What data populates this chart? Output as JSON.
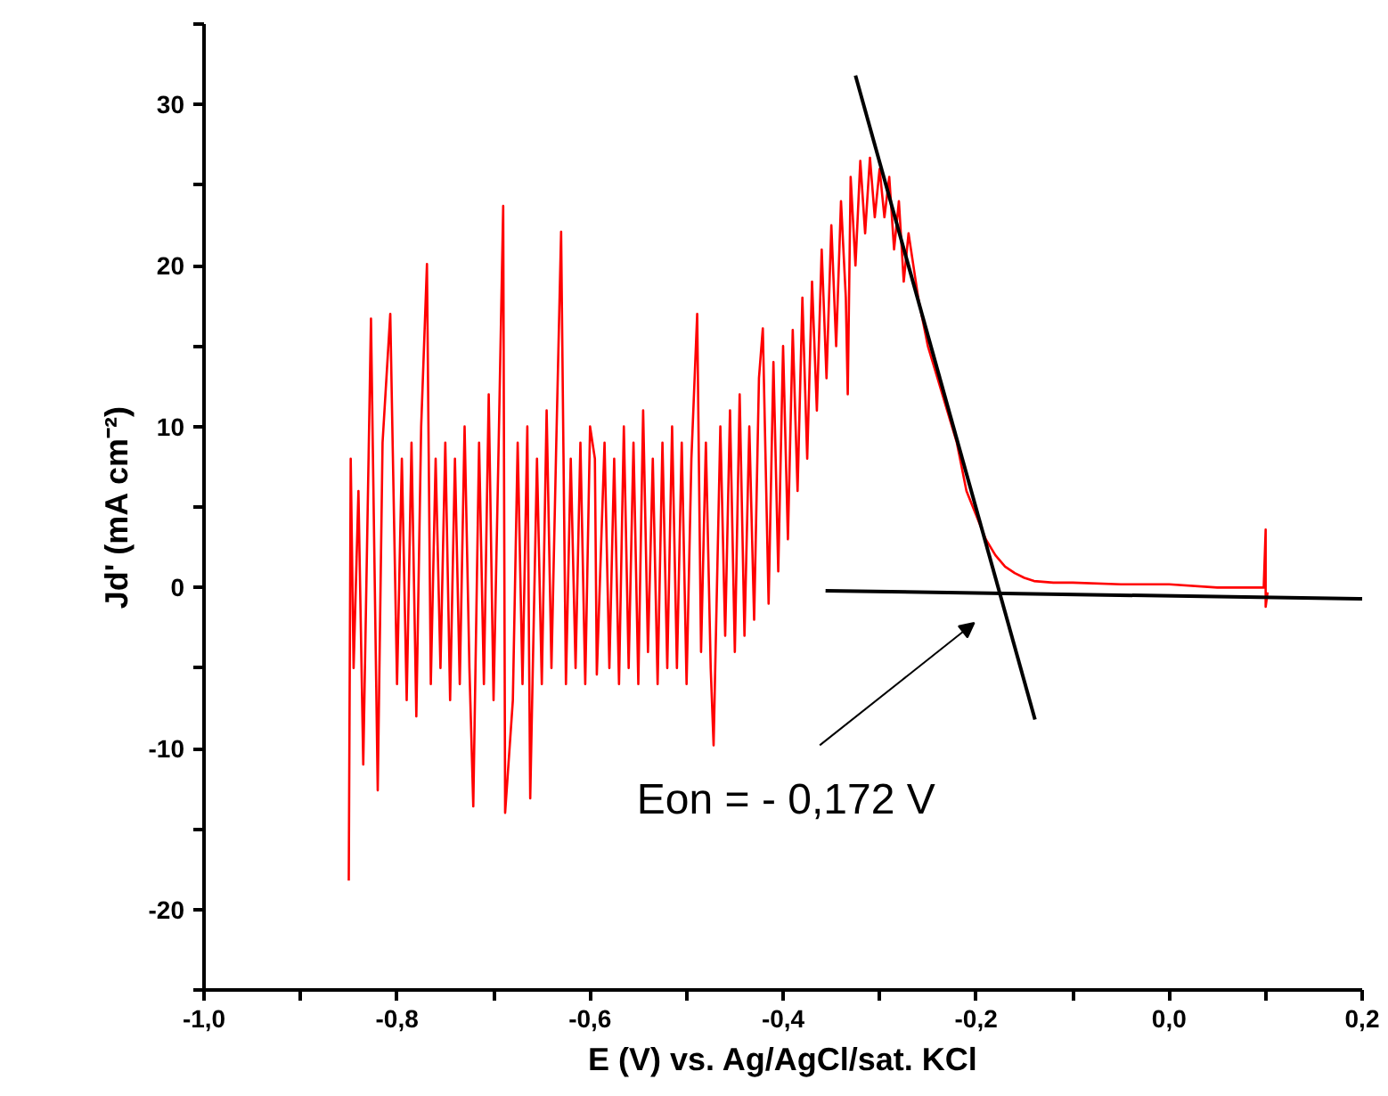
{
  "chart_data": {
    "type": "line",
    "xlabel": "E (V) vs. Ag/AgCl/sat. KCl",
    "ylabel": "Jd' (mA cm⁻²)",
    "xlim": [
      -1.0,
      0.2
    ],
    "ylim": [
      -25,
      35
    ],
    "xticks": [
      {
        "value": -1.0,
        "label": "-1,0"
      },
      {
        "value": -0.9,
        "label": null
      },
      {
        "value": -0.8,
        "label": "-0,8"
      },
      {
        "value": -0.7,
        "label": null
      },
      {
        "value": -0.6,
        "label": "-0,6"
      },
      {
        "value": -0.5,
        "label": null
      },
      {
        "value": -0.4,
        "label": "-0,4"
      },
      {
        "value": -0.3,
        "label": null
      },
      {
        "value": -0.2,
        "label": "-0,2"
      },
      {
        "value": -0.1,
        "label": null
      },
      {
        "value": 0.0,
        "label": "0,0"
      },
      {
        "value": 0.1,
        "label": null
      },
      {
        "value": 0.2,
        "label": "0,2"
      }
    ],
    "yticks": [
      {
        "value": -25,
        "label": null
      },
      -20,
      {
        "value": -15,
        "label": null
      },
      -10,
      {
        "value": -5,
        "label": null
      },
      0,
      {
        "value": 5,
        "label": null
      },
      10,
      {
        "value": 15,
        "label": null
      },
      20,
      {
        "value": 25,
        "label": null
      },
      30,
      {
        "value": 35,
        "label": null
      }
    ],
    "grid": false,
    "marker": "none",
    "line_style": "solid",
    "annotations": [
      "Eon = - 0,172 V"
    ],
    "series": [
      {
        "color": "#ff0000",
        "x": [
          -0.85,
          -0.848,
          -0.845,
          -0.84,
          -0.835,
          -0.827,
          -0.82,
          -0.815,
          -0.807,
          -0.8,
          -0.795,
          -0.79,
          -0.785,
          -0.78,
          -0.775,
          -0.769,
          -0.765,
          -0.76,
          -0.755,
          -0.75,
          -0.745,
          -0.74,
          -0.735,
          -0.73,
          -0.725,
          -0.721,
          -0.715,
          -0.71,
          -0.705,
          -0.7,
          -0.695,
          -0.69,
          -0.688,
          -0.68,
          -0.675,
          -0.67,
          -0.665,
          -0.662,
          -0.655,
          -0.65,
          -0.645,
          -0.64,
          -0.635,
          -0.63,
          -0.625,
          -0.62,
          -0.615,
          -0.61,
          -0.605,
          -0.6,
          -0.595,
          -0.593,
          -0.585,
          -0.58,
          -0.575,
          -0.57,
          -0.565,
          -0.56,
          -0.555,
          -0.55,
          -0.545,
          -0.54,
          -0.535,
          -0.53,
          -0.525,
          -0.52,
          -0.515,
          -0.51,
          -0.505,
          -0.5,
          -0.495,
          -0.489,
          -0.485,
          -0.48,
          -0.475,
          -0.472,
          -0.465,
          -0.46,
          -0.455,
          -0.45,
          -0.445,
          -0.44,
          -0.435,
          -0.43,
          -0.425,
          -0.421,
          -0.415,
          -0.41,
          -0.405,
          -0.4,
          -0.395,
          -0.39,
          -0.385,
          -0.38,
          -0.375,
          -0.37,
          -0.365,
          -0.36,
          -0.355,
          -0.35,
          -0.345,
          -0.34,
          -0.335,
          -0.333,
          -0.33,
          -0.325,
          -0.32,
          -0.315,
          -0.31,
          -0.305,
          -0.3,
          -0.295,
          -0.29,
          -0.285,
          -0.28,
          -0.275,
          -0.27,
          -0.26,
          -0.25,
          -0.24,
          -0.23,
          -0.22,
          -0.21,
          -0.2,
          -0.19,
          -0.18,
          -0.17,
          -0.16,
          -0.15,
          -0.14,
          -0.12,
          -0.1,
          -0.05,
          0.0,
          0.05,
          0.098,
          0.1,
          0.1,
          0.102
        ],
        "values": [
          -18.2,
          8,
          -5,
          6,
          -11,
          16.7,
          -12.6,
          9,
          17,
          -6,
          8,
          -7,
          9,
          -8,
          10,
          20.1,
          -6,
          8,
          -5,
          9,
          -7,
          8,
          -6,
          10,
          -5,
          -13.6,
          9,
          -6,
          12,
          -7,
          8,
          23.7,
          -14,
          -7,
          9,
          -6,
          10,
          -13.1,
          8,
          -6,
          11,
          -5,
          9,
          22.1,
          -6,
          8,
          -5,
          9,
          -6,
          10,
          8,
          -5.4,
          9,
          -5,
          8,
          -6,
          10,
          -5,
          9,
          -6,
          11,
          -4,
          8,
          -6,
          9,
          -5,
          10,
          -5,
          9,
          -6,
          8,
          17,
          -4,
          9,
          -5,
          -9.8,
          10,
          -3,
          11,
          -4,
          12,
          -3,
          10,
          -2,
          13,
          16.1,
          -1,
          14,
          1,
          15,
          3,
          16,
          6,
          18,
          8,
          19,
          11,
          21,
          13,
          22.5,
          15,
          24,
          18,
          12,
          25.5,
          20,
          26.5,
          22,
          26.7,
          23,
          26,
          23,
          25.5,
          21,
          24,
          19,
          22,
          18,
          15,
          13,
          11,
          9,
          6,
          4.5,
          3,
          2,
          1.3,
          0.9,
          0.6,
          0.4,
          0.3,
          0.3,
          0.2,
          0.2,
          0,
          0,
          3.6,
          -1.2,
          -0.3
        ]
      },
      {
        "color": "#000000",
        "x": [
          -0.325,
          -0.139
        ],
        "values": [
          31.8,
          -8.2
        ]
      },
      {
        "color": "#000000",
        "x": [
          -0.356,
          0.2
        ],
        "values": [
          -0.2,
          -0.7
        ]
      }
    ]
  }
}
